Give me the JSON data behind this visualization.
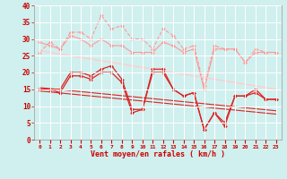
{
  "bg_color": "#cff0ee",
  "grid_color": "#ffffff",
  "xlabel": "Vent moyen/en rafales ( km/h )",
  "x_ticks": [
    0,
    1,
    2,
    3,
    4,
    5,
    6,
    7,
    8,
    9,
    10,
    11,
    12,
    13,
    14,
    15,
    16,
    17,
    18,
    19,
    20,
    21,
    22,
    23
  ],
  "ylim": [
    0,
    40
  ],
  "yticks": [
    0,
    5,
    10,
    15,
    20,
    25,
    30,
    35,
    40
  ],
  "series": [
    {
      "name": "rafales_high",
      "color": "#ff9999",
      "linewidth": 0.8,
      "marker": "D",
      "markersize": 2.0,
      "linestyle": "--",
      "values": [
        26,
        29,
        27,
        32,
        32,
        30,
        37,
        33,
        34,
        30,
        30,
        27,
        33,
        31,
        27,
        28,
        16,
        28,
        27,
        27,
        23,
        27,
        26,
        26
      ]
    },
    {
      "name": "rafales_low",
      "color": "#ff9999",
      "linewidth": 0.8,
      "marker": "D",
      "markersize": 2.0,
      "linestyle": "-",
      "values": [
        29,
        28,
        27,
        31,
        30,
        28,
        30,
        28,
        28,
        26,
        26,
        26,
        29,
        28,
        26,
        27,
        15,
        27,
        27,
        27,
        23,
        26,
        26,
        26
      ]
    },
    {
      "name": "trend_light",
      "color": "#ffcccc",
      "linewidth": 1.0,
      "marker": null,
      "markersize": 0,
      "linestyle": "-",
      "values": [
        26.5,
        26.0,
        25.5,
        25.0,
        24.5,
        24.0,
        23.5,
        23.0,
        22.5,
        22.0,
        21.5,
        21.0,
        20.5,
        20.0,
        19.5,
        19.0,
        18.5,
        18.0,
        17.5,
        17.0,
        16.5,
        16.0,
        15.5,
        15.0
      ]
    },
    {
      "name": "vent_high",
      "color": "#dd2222",
      "linewidth": 0.9,
      "marker": "D",
      "markersize": 2.0,
      "linestyle": "-",
      "values": [
        15,
        15,
        15,
        20,
        20,
        19,
        21,
        22,
        18,
        9,
        9,
        21,
        21,
        15,
        13,
        14,
        3,
        8,
        5,
        13,
        13,
        15,
        12,
        12
      ]
    },
    {
      "name": "vent_low",
      "color": "#dd2222",
      "linewidth": 0.9,
      "marker": "D",
      "markersize": 2.0,
      "linestyle": "-",
      "values": [
        15,
        15,
        14,
        19,
        19,
        18,
        20,
        20,
        17,
        8,
        9,
        20,
        20,
        15,
        13,
        14,
        3,
        8,
        4,
        13,
        13,
        14,
        12,
        12
      ]
    },
    {
      "name": "trend_dark1",
      "color": "#dd2222",
      "linewidth": 0.8,
      "marker": null,
      "markersize": 0,
      "linestyle": "-",
      "values": [
        15.5,
        15.2,
        14.9,
        14.6,
        14.3,
        14.0,
        13.7,
        13.4,
        13.1,
        12.8,
        12.5,
        12.2,
        11.9,
        11.6,
        11.3,
        11.0,
        10.7,
        10.4,
        10.1,
        9.8,
        9.5,
        9.2,
        8.9,
        8.6
      ]
    },
    {
      "name": "trend_dark2",
      "color": "#dd2222",
      "linewidth": 0.8,
      "marker": null,
      "markersize": 0,
      "linestyle": "-",
      "values": [
        14.5,
        14.2,
        13.9,
        13.6,
        13.3,
        13.0,
        12.7,
        12.4,
        12.1,
        11.8,
        11.5,
        11.2,
        10.9,
        10.6,
        10.3,
        10.0,
        9.7,
        9.4,
        9.1,
        8.8,
        8.5,
        8.2,
        7.9,
        7.6
      ]
    }
  ],
  "tick_label_fontsize": 4.5,
  "xlabel_fontsize": 6.0,
  "ylabel_fontsize": 5.5
}
